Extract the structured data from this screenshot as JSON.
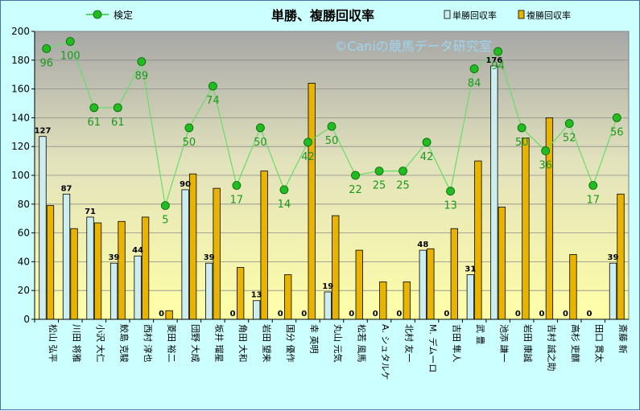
{
  "chart_data": {
    "type": "bar",
    "title": "単勝、複勝回収率",
    "watermark": "©Caniの競馬データ研究室",
    "categories": [
      "松山 弘平",
      "川田 将雅",
      "小沢 大仁",
      "鮫島 克駿",
      "西村 淳也",
      "菱田 裕二",
      "団野 大成",
      "坂井 瑠星",
      "角田 大和",
      "岩田 望来",
      "国分 優作",
      "幸 英明",
      "丸山 元気",
      "松若 風馬",
      "A. シュタルケ",
      "北村 友一",
      "M. デムーロ",
      "吉田 隼人",
      "武 豊",
      "池添 謙一",
      "岩田 康誠",
      "吉村 誠之助",
      "高杉 吏麒",
      "田口 貫太",
      "斎藤 新"
    ],
    "series": [
      {
        "name": "単勝回収率",
        "type": "bar",
        "color": "#cceef0",
        "values": [
          127,
          87,
          71,
          39,
          44,
          0,
          90,
          39,
          0,
          13,
          0,
          0,
          19,
          0,
          0,
          0,
          48,
          0,
          31,
          176,
          0,
          0,
          0,
          0,
          39
        ]
      },
      {
        "name": "複勝回収率",
        "type": "bar",
        "color": "#e8b400",
        "values": [
          79,
          63,
          67,
          68,
          71,
          6,
          101,
          91,
          36,
          103,
          31,
          164,
          72,
          48,
          26,
          26,
          49,
          63,
          110,
          78,
          126,
          140,
          45,
          0,
          87
        ]
      },
      {
        "name": "検定",
        "type": "line",
        "color": "#33cc33",
        "values": [
          188,
          193,
          147,
          147,
          179,
          79,
          133,
          162,
          93,
          133,
          90,
          123,
          134,
          100,
          103,
          103,
          123,
          89,
          174,
          186,
          133,
          117,
          136,
          93,
          140
        ],
        "labels": [
          "96",
          "100",
          "61",
          "61",
          "89",
          "5",
          "50",
          "74",
          "17",
          "50",
          "14",
          "42",
          "50",
          "22",
          "25",
          "25",
          "42",
          "13",
          "84",
          "94",
          "50",
          "36",
          "52",
          "17",
          "56"
        ]
      }
    ],
    "ylim": [
      0,
      200
    ],
    "yticks": [
      "0",
      "20",
      "40",
      "60",
      "80",
      "100",
      "120",
      "140",
      "160",
      "180",
      "200"
    ],
    "legend_position": "top",
    "grid": true
  }
}
